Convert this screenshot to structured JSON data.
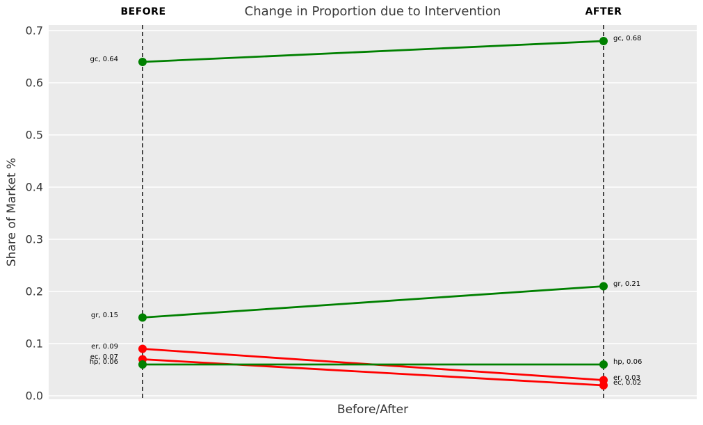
{
  "title": "Change in Proportion due to Intervention",
  "column_headers": {
    "before": "BEFORE",
    "after": "AFTER"
  },
  "axes": {
    "y_label": "Share of Market %",
    "x_label": "Before/After",
    "y_ticks": [
      "0.0",
      "0.1",
      "0.2",
      "0.3",
      "0.4",
      "0.5",
      "0.6",
      "0.7"
    ]
  },
  "colors": {
    "increase_line": "#008000",
    "decrease_line": "#ff0000",
    "plot_background": "#ebebeb",
    "gridline": "#ffffff",
    "dashed_guide": "#111111",
    "title_text": "#3a3a3a",
    "tick_text": "#333333"
  },
  "chart_data": {
    "type": "line",
    "subtype": "slope-chart",
    "title": "Change in Proportion due to Intervention",
    "xlabel": "Before/After",
    "ylabel": "Share of Market %",
    "categories": [
      "BEFORE",
      "AFTER"
    ],
    "ylim": [
      0.0,
      0.7
    ],
    "grid": "horizontal white gridlines on gray panel",
    "legend": "none",
    "series": [
      {
        "name": "gc",
        "values": [
          0.64,
          0.68
        ],
        "color": "#008000",
        "label_before": "gc, 0.64",
        "label_after": "gc, 0.68"
      },
      {
        "name": "gr",
        "values": [
          0.15,
          0.21
        ],
        "color": "#008000",
        "label_before": "gr, 0.15",
        "label_after": "gr, 0.21"
      },
      {
        "name": "er",
        "values": [
          0.09,
          0.03
        ],
        "color": "#ff0000",
        "label_before": "er, 0.09",
        "label_after": "er, 0.03"
      },
      {
        "name": "ec",
        "values": [
          0.07,
          0.02
        ],
        "color": "#ff0000",
        "label_before": "ec, 0.07",
        "label_after": "ec, 0.02"
      },
      {
        "name": "hp",
        "values": [
          0.06,
          0.06
        ],
        "color": "#008000",
        "label_before": "hp, 0.06",
        "label_after": "hp, 0.06"
      }
    ]
  }
}
